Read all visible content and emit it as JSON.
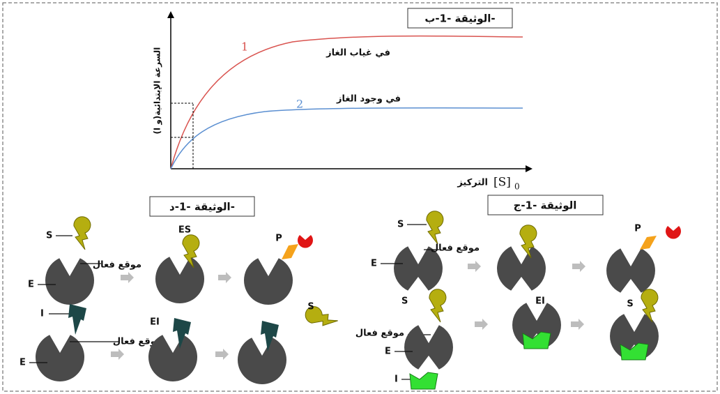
{
  "graph": {
    "title": "الوثيقة -1-ب-",
    "y_label": "السرعة الإبتدائية(و ا)",
    "x_label": "التركيز",
    "x_symbol": "[S]",
    "x_subscript": "0",
    "curves": [
      {
        "number": "1",
        "label": "في غياب الغاز"
      },
      {
        "number": "2",
        "label": "في وجود الغاز"
      }
    ]
  },
  "panel_d": {
    "title": "الوثيقة -1-د-",
    "row1": {
      "substrate": "S",
      "enzyme": "E",
      "active_site": "موقع فعال",
      "complex": "ES",
      "product": "P"
    },
    "row2": {
      "inhibitor": "I",
      "enzyme": "E",
      "active_site": "موقع فعال",
      "complex": "EI",
      "substrate": "S"
    }
  },
  "panel_c": {
    "title": "الوثيقة -1-ج",
    "row1": {
      "substrate": "S",
      "enzyme": "E",
      "active_site": "موقع فعال",
      "product": "P"
    },
    "row2": {
      "substrate": "S",
      "active_site": "موقع فعال",
      "enzyme": "E",
      "inhibitor": "I",
      "complex": "EI",
      "substrate_2": "S"
    }
  }
}
